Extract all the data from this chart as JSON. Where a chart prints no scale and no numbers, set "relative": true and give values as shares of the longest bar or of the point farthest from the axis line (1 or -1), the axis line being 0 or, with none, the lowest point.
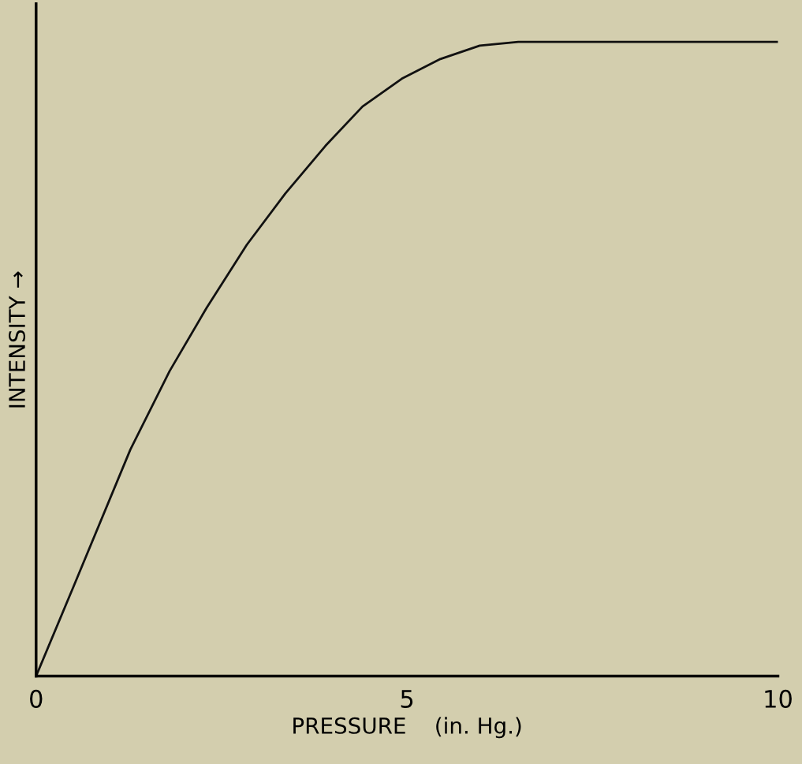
{
  "chart_data": {
    "type": "line",
    "xlabel": "PRESSURE    (in. Hg.)",
    "ylabel": "INTENSITY →",
    "relative": true,
    "x": [
      0,
      0.5,
      1.27,
      1.8,
      2.3,
      2.84,
      3.36,
      3.9,
      4.4,
      4.93,
      5.45,
      5.98,
      6.5,
      10
    ],
    "series": [
      {
        "color": "#111111",
        "values": [
          0,
          0.14,
          0.357,
          0.481,
          0.581,
          0.68,
          0.761,
          0.836,
          0.898,
          0.942,
          0.973,
          0.994,
          1,
          1
        ]
      }
    ],
    "xlim": [
      0,
      10
    ],
    "xticks": [
      0,
      5,
      10
    ],
    "grid": false,
    "marker": "none",
    "line_style": "solid"
  }
}
